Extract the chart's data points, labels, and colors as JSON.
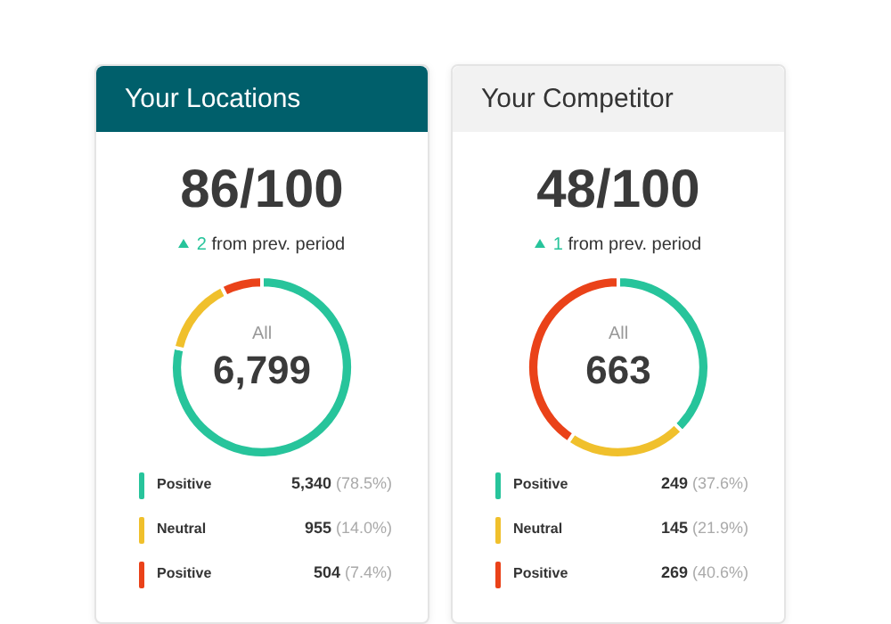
{
  "chart_data": [
    {
      "type": "donut",
      "title": "Your Locations",
      "annotations": [
        "86/100",
        "2 from prev. period",
        "All",
        "6,799"
      ],
      "categories": [
        "Positive",
        "Neutral",
        "Positive"
      ],
      "values": [
        5340,
        955,
        504
      ],
      "colors": [
        "#27c49b",
        "#f0c02c",
        "#ea4219"
      ],
      "value_labels": [
        "5,340 (78.5%)",
        "955 (14.0%)",
        "504 (7.4%)"
      ],
      "legend": "bottom"
    },
    {
      "type": "donut",
      "title": "Your Competitor",
      "annotations": [
        "48/100",
        "1 from prev. period",
        "All",
        "663"
      ],
      "categories": [
        "Positive",
        "Neutral",
        "Positive"
      ],
      "values": [
        249,
        145,
        269
      ],
      "colors": [
        "#27c49b",
        "#f0c02c",
        "#ea4219"
      ],
      "value_labels": [
        "249 (37.6%)",
        "145 (21.9%)",
        "269 (40.6%)"
      ],
      "legend": "bottom"
    }
  ]
}
